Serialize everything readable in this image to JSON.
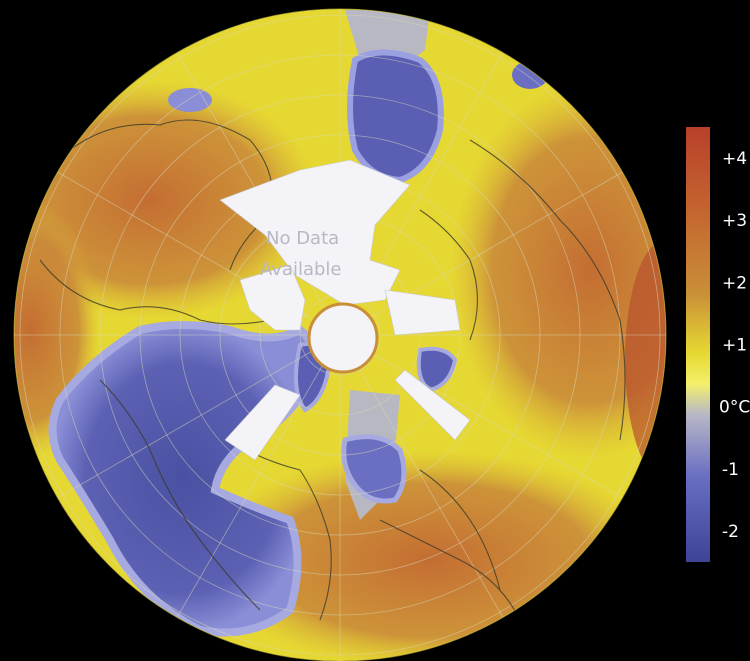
{
  "map": {
    "no_data_label_line1": "No Data",
    "no_data_label_line2": "Available"
  },
  "legend": {
    "unit": "°C",
    "ticks": [
      {
        "label": "+4",
        "value": 4
      },
      {
        "label": "+3",
        "value": 3
      },
      {
        "label": "+2",
        "value": 2
      },
      {
        "label": "+1",
        "value": 1
      },
      {
        "label": "0°C",
        "value": 0
      },
      {
        "label": "-1",
        "value": -1
      },
      {
        "label": "-2",
        "value": -2
      }
    ],
    "range": [
      -2.5,
      4.5
    ]
  },
  "colors": {
    "background": "#000000",
    "strong_warming": "#b8402a",
    "warming": "#c67a36",
    "slight_warming": "#e6d832",
    "near_zero": "#f3f06a",
    "neutral": "#b8b8c2",
    "slight_cooling": "#8a8ed6",
    "cooling": "#3e4396",
    "no_data": "#f4f4f8",
    "coastline": "#3a3a2a"
  }
}
